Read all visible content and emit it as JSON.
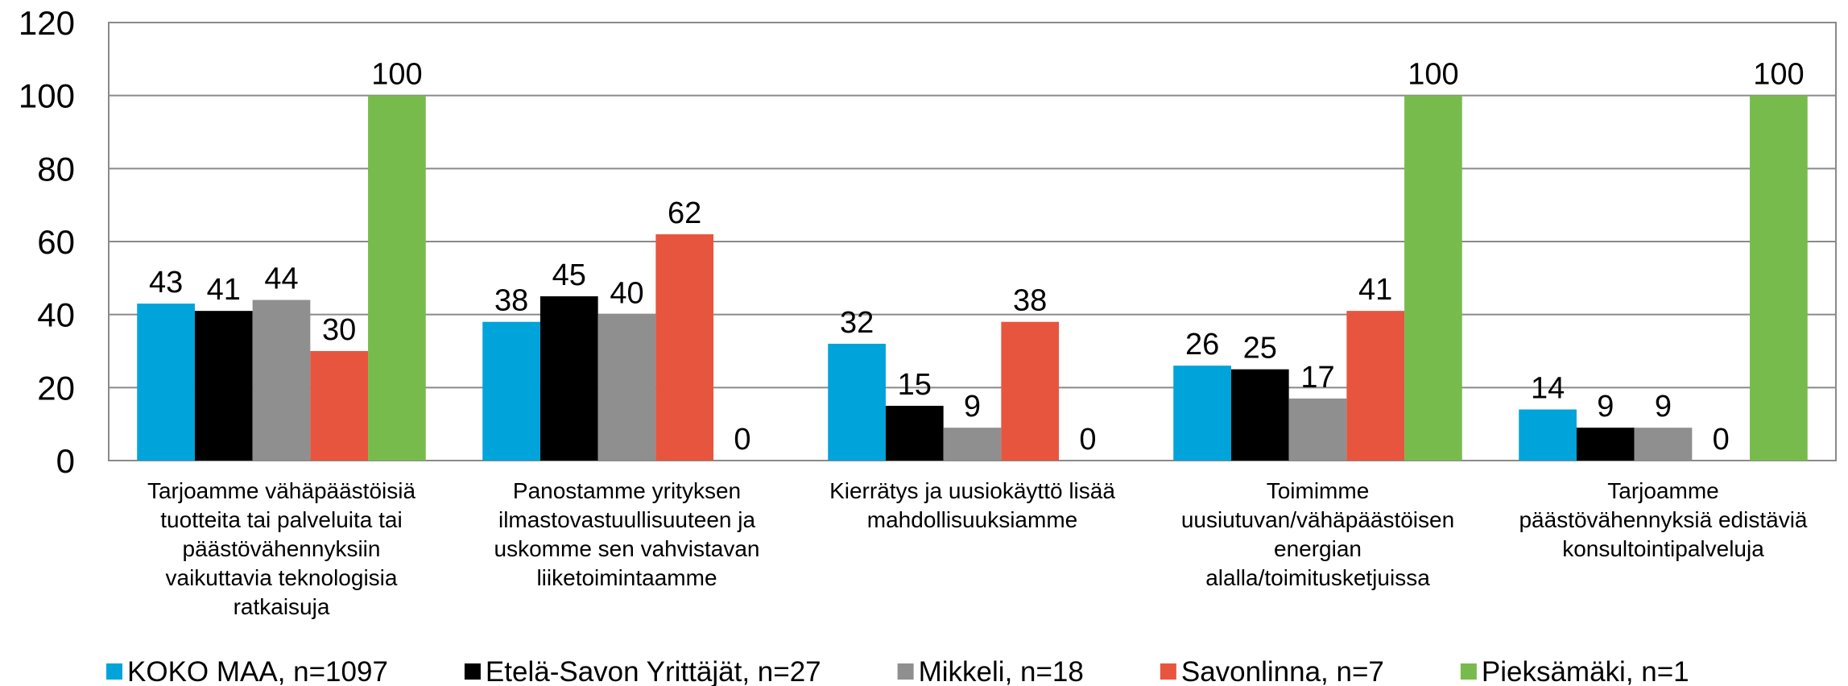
{
  "chart_data": {
    "type": "bar",
    "categories": [
      "Tarjoamme vähäpäästöisiä\ntuotteita tai palveluita tai\npäästövähennyksiin\nvaikuttavia teknologisia\nratkaisuja",
      "Panostamme yrityksen\nilmastovastuullisuuteen ja\nuskomme sen vahvistavan\nliiketoimintaamme",
      "Kierrätys ja uusiokäyttö lisää\nmahdollisuuksiamme",
      "Toimimme\nuusiutuvan/vähäpäästöisen\nenergian\nalalla/toimitusketjuissa",
      "Tarjoamme\npäästövähennyksiä edistäviä\nkonsultointipalveluja"
    ],
    "series": [
      {
        "name": "KOKO MAA, n=1097",
        "color": "#00a3da",
        "values": [
          43,
          38,
          32,
          26,
          14
        ]
      },
      {
        "name": "Etelä-Savon Yrittäjät, n=27",
        "color": "#000000",
        "values": [
          41,
          45,
          15,
          25,
          9
        ]
      },
      {
        "name": "Mikkeli, n=18",
        "color": "#8f8f8f",
        "values": [
          44,
          40,
          9,
          17,
          9
        ]
      },
      {
        "name": "Savonlinna, n=7",
        "color": "#e8553f",
        "values": [
          30,
          62,
          38,
          41,
          0
        ]
      },
      {
        "name": "Pieksämäki, n=1",
        "color": "#77bb4d",
        "values": [
          100,
          0,
          0,
          100,
          100
        ]
      }
    ],
    "ylim": [
      0,
      120
    ],
    "yticks": [
      0,
      20,
      40,
      60,
      80,
      100,
      120
    ],
    "grid": true,
    "legend": "bottom"
  }
}
